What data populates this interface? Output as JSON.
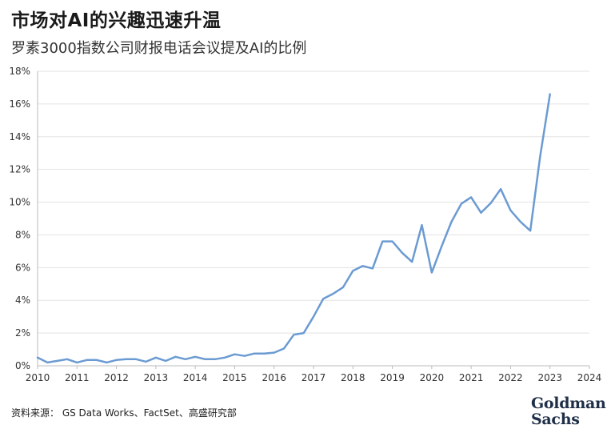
{
  "header": {
    "title": "市场对AI的兴趣迅速升温",
    "subtitle": "罗素3000指数公司财报电话会议提及AI的比例"
  },
  "footer": {
    "source": "资料来源： GS Data Works、FactSet、高盛研究部",
    "logo_line1": "Goldman",
    "logo_line2": "Sachs"
  },
  "chart_data": {
    "type": "line",
    "title": "市场对AI的兴趣迅速升温",
    "subtitle": "罗素3000指数公司财报电话会议提及AI的比例",
    "xlabel": "",
    "ylabel": "",
    "xlim": [
      2010,
      2024
    ],
    "ylim": [
      0,
      18
    ],
    "x_ticks": [
      "2010",
      "2011",
      "2012",
      "2013",
      "2014",
      "2015",
      "2016",
      "2017",
      "2018",
      "2019",
      "2020",
      "2021",
      "2022",
      "2023",
      "2024"
    ],
    "y_ticks": [
      "0%",
      "2%",
      "4%",
      "6%",
      "8%",
      "10%",
      "12%",
      "14%",
      "16%",
      "18%"
    ],
    "grid": "horizontal",
    "legend": "none",
    "series": [
      {
        "color": "#6b9bd2",
        "x": [
          2010.0,
          2010.25,
          2010.5,
          2010.75,
          2011.0,
          2011.25,
          2011.5,
          2011.75,
          2012.0,
          2012.25,
          2012.5,
          2012.75,
          2013.0,
          2013.25,
          2013.5,
          2013.75,
          2014.0,
          2014.25,
          2014.5,
          2014.75,
          2015.0,
          2015.25,
          2015.5,
          2015.75,
          2016.0,
          2016.25,
          2016.5,
          2016.75,
          2017.0,
          2017.25,
          2017.5,
          2017.75,
          2018.0,
          2018.25,
          2018.5,
          2018.75,
          2019.0,
          2019.25,
          2019.5,
          2019.75,
          2020.0,
          2020.25,
          2020.5,
          2020.75,
          2021.0,
          2021.25,
          2021.5,
          2021.75,
          2022.0,
          2022.25,
          2022.5,
          2022.75,
          2023.0
        ],
        "y": [
          0.5,
          0.2,
          0.3,
          0.4,
          0.2,
          0.35,
          0.35,
          0.2,
          0.35,
          0.4,
          0.4,
          0.25,
          0.5,
          0.3,
          0.55,
          0.4,
          0.55,
          0.4,
          0.4,
          0.5,
          0.7,
          0.6,
          0.75,
          0.75,
          0.8,
          1.05,
          1.9,
          2.0,
          3.0,
          4.1,
          4.4,
          4.8,
          5.8,
          6.1,
          5.95,
          7.6,
          7.6,
          6.9,
          6.35,
          8.6,
          5.7,
          7.3,
          8.8,
          9.9,
          10.3,
          9.35,
          9.95,
          10.8,
          9.5,
          8.8,
          8.25,
          12.8,
          16.6
        ]
      }
    ]
  }
}
